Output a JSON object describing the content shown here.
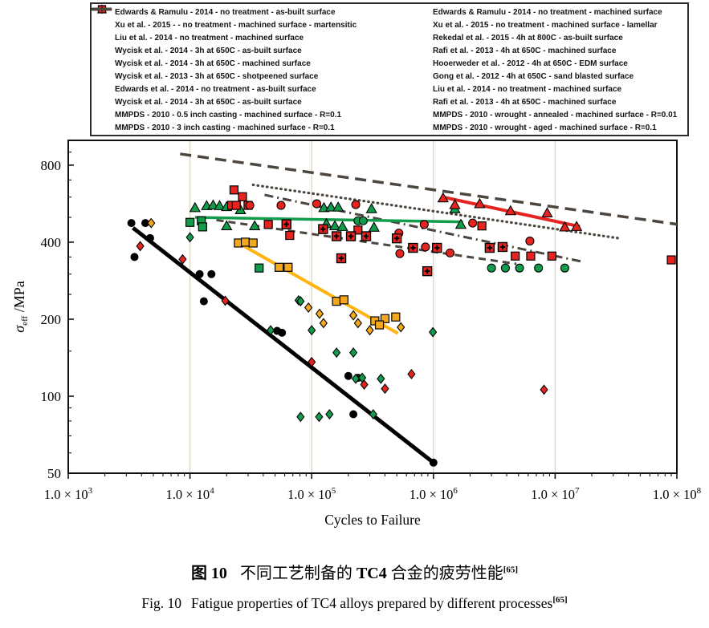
{
  "figure": {
    "caption_cn": {
      "label": "图 10",
      "pre": "不同工艺制备的 ",
      "alloy": "TC4",
      "post": " 合金的疲劳性能",
      "ref": "[65]"
    },
    "caption_en": {
      "label": "Fig. 10",
      "text": "Fatigue properties of TC4 alloys prepared by different processes",
      "ref": "[65]"
    }
  },
  "colors": {
    "green": "#119c4c",
    "red": "#e52420",
    "orange": "#f5a81c",
    "orange_line": "#ffb411",
    "black": "#000000",
    "gray": "#4d463f",
    "grid": "#ddd3c3",
    "frame": "#111111"
  },
  "chart_data": {
    "type": "scatter",
    "title": "",
    "xlabel": "Cycles to Failure",
    "ylabel": "σ_eff /MPa",
    "ylabel_parts": {
      "sigma": "σ",
      "sub": "eff",
      "unit": " /MPa"
    },
    "xlim": [
      1000,
      100000000
    ],
    "ylim": [
      50,
      1000
    ],
    "x_scale": "log",
    "y_scale": "log",
    "grid": "vertical-only",
    "legend_position": "top",
    "x_ticks": [
      {
        "value": 1000,
        "prefix": "1.0 × 10",
        "exp": "3"
      },
      {
        "value": 10000,
        "prefix": "1.0 × 10",
        "exp": "4"
      },
      {
        "value": 100000,
        "prefix": "1.0 × 10",
        "exp": "5"
      },
      {
        "value": 1000000,
        "prefix": "1.0 × 10",
        "exp": "6"
      },
      {
        "value": 10000000,
        "prefix": "1.0 × 10",
        "exp": "7"
      },
      {
        "value": 100000000,
        "prefix": "1.0 × 10",
        "exp": "8"
      }
    ],
    "y_ticks": [
      800,
      400,
      200,
      100,
      50
    ],
    "y_minor_ticks": [
      900,
      700,
      600,
      500,
      350,
      300,
      250,
      150,
      90,
      80,
      70,
      60
    ],
    "x_gridlines": [
      10000,
      100000,
      1000000,
      10000000
    ],
    "legend_left": [
      {
        "marker": "circle",
        "color": "#000000",
        "label": "Edwards & Ramulu - 2014 - no treatment - as-built surface"
      },
      {
        "marker": "square",
        "color": "#119c4c",
        "label": "Xu et al. - 2015 - - no treatment - machined surface - martensitic"
      },
      {
        "marker": "triangle",
        "color": "#119c4c",
        "label": "Liu et al. - 2014 - no treatment - machined surface"
      },
      {
        "marker": "square",
        "color": "#f5a81c",
        "label": "Wycisk et al. - 2014 - 3h at 650C - as-built surface"
      },
      {
        "marker": "square",
        "color": "#e52420",
        "label": "Wycisk et al. - 2014 - 3h at 650C - machined surface"
      },
      {
        "marker": "circle",
        "color": "#e52420",
        "label": "Wycisk et al. - 2013 - 3h at 650C - shotpeened surface"
      },
      {
        "marker": "line",
        "style": "solid",
        "color": "#000000",
        "label": "Edwards et al. - 2014 - no treatment - as-built surface"
      },
      {
        "marker": "line",
        "style": "solid",
        "color": "#ffb411",
        "label": "Wycisk  et al. -  2014 - 3h at 650C - as-built surface"
      },
      {
        "marker": "line",
        "style": "dashdot",
        "color": "#4d463f",
        "label": "MMPDS - 2010 - 0.5 inch casting - machined surface - R=0.1"
      },
      {
        "marker": "line",
        "style": "dashed-long",
        "color": "#4d463f",
        "label": "MMPDS - 2010 - 3 inch casting - machined surface - R=0.1"
      }
    ],
    "legend_right": [
      {
        "marker": "diamond",
        "color": "#119c4c",
        "label": "Edwards & Ramulu - 2014 - no treatment - machined surface"
      },
      {
        "marker": "circle",
        "color": "#119c4c",
        "label": "Xu et al. - 2015 - no treatment - machined surface - lamellar"
      },
      {
        "marker": "diamond",
        "color": "#f5a81c",
        "label": "Rekedal et al.  - 2015 - 4h at 800C - as-built surface"
      },
      {
        "marker": "triangle",
        "color": "#e52420",
        "label": "Rafi et al. - 2013 - 4h at 650C - machined surface"
      },
      {
        "marker": "diamond",
        "color": "#e52420",
        "label": "Hooerweder et al. - 2012 - 4h at 650C - EDM surface"
      },
      {
        "marker": "square-cross",
        "color": "#e52420",
        "label": "Gong et al. - 2012 - 4h at 650C - sand blasted surface"
      },
      {
        "marker": "line",
        "style": "solid",
        "color": "#119c4c",
        "label": "Liu et al. - 2014 - no treatment - machined surface"
      },
      {
        "marker": "line",
        "style": "solid",
        "color": "#e52420",
        "label": "Rafi et al. - 2013 - 4h at 650C - machined surface"
      },
      {
        "marker": "line",
        "style": "dotted",
        "color": "#4d463f",
        "label": "MMPDS - 2010 - wrought - annealed - machined surface - R=0.01"
      },
      {
        "marker": "line",
        "style": "dashed-long",
        "color": "#4d463f",
        "label": "MMPDS - 2010 - wrought - aged - machined surface - R=0.1"
      }
    ],
    "series": [
      {
        "name": "Edwards & Ramulu - 2014 - no treatment - as-built surface",
        "marker": "circle",
        "color": "#000000",
        "outline": false,
        "points": [
          [
            3300,
            475
          ],
          [
            4300,
            475
          ],
          [
            4700,
            415
          ],
          [
            3500,
            350
          ],
          [
            12000,
            300
          ],
          [
            15000,
            300
          ],
          [
            13000,
            235
          ],
          [
            52000,
            180
          ],
          [
            57000,
            177
          ],
          [
            200000,
            120
          ],
          [
            240000,
            118
          ],
          [
            220000,
            85
          ],
          [
            1000000,
            55
          ]
        ]
      },
      {
        "name": "Xu et al. - 2015 - no treatment - machined surface - martensitic",
        "marker": "square",
        "color": "#119c4c",
        "outline": true,
        "points": [
          [
            10000,
            478
          ],
          [
            12400,
            485
          ],
          [
            12700,
            459
          ],
          [
            37000,
            317
          ]
        ]
      },
      {
        "name": "Liu et al. - 2014 - no treatment - machined surface",
        "marker": "triangle",
        "color": "#119c4c",
        "outline": true,
        "points": [
          [
            11000,
            545
          ],
          [
            13700,
            555
          ],
          [
            15500,
            558
          ],
          [
            17500,
            555
          ],
          [
            20000,
            550
          ],
          [
            26000,
            535
          ],
          [
            20000,
            463
          ],
          [
            34000,
            463
          ],
          [
            126000,
            545
          ],
          [
            144000,
            548
          ],
          [
            165000,
            548
          ],
          [
            310000,
            540
          ],
          [
            132000,
            472
          ],
          [
            155000,
            463
          ],
          [
            179000,
            460
          ],
          [
            325000,
            457
          ],
          [
            1500000,
            540
          ],
          [
            1680000,
            469
          ]
        ]
      },
      {
        "name": "Wycisk et al. - 2014 - 3h at 650C - as-built surface",
        "marker": "square",
        "color": "#f5a81c",
        "outline": true,
        "points": [
          [
            25000,
            397
          ],
          [
            28500,
            400
          ],
          [
            33000,
            397
          ],
          [
            54000,
            319
          ],
          [
            64000,
            319
          ],
          [
            160000,
            235
          ],
          [
            184000,
            238
          ],
          [
            330000,
            197
          ],
          [
            400000,
            201
          ],
          [
            490000,
            204
          ],
          [
            360000,
            190
          ]
        ]
      },
      {
        "name": "Wycisk et al. - 2014 - 3h at 650C - machined surface",
        "marker": "square",
        "color": "#e52420",
        "outline": true,
        "points": [
          [
            23000,
            640
          ],
          [
            27000,
            602
          ],
          [
            22000,
            557
          ],
          [
            24000,
            557
          ],
          [
            30000,
            557
          ],
          [
            44000,
            469
          ],
          [
            66000,
            425
          ],
          [
            240000,
            446
          ],
          [
            2500000,
            463
          ],
          [
            4700000,
            353
          ],
          [
            6300000,
            353
          ],
          [
            9400000,
            353
          ],
          [
            90000000,
            341
          ]
        ]
      },
      {
        "name": "Wycisk et al. - 2013 - 3h at 650C - shotpeened surface",
        "marker": "circle",
        "color": "#e52420",
        "outline": true,
        "points": [
          [
            31000,
            557
          ],
          [
            56000,
            557
          ],
          [
            110000,
            565
          ],
          [
            230000,
            561
          ],
          [
            840000,
            469
          ],
          [
            2100000,
            475
          ],
          [
            520000,
            434
          ],
          [
            860000,
            383
          ],
          [
            530000,
            361
          ],
          [
            1370000,
            363
          ],
          [
            6200000,
            404
          ]
        ]
      },
      {
        "name": "Edwards & Ramulu - 2014 - no treatment - machined surface",
        "marker": "diamond",
        "color": "#119c4c",
        "outline": true,
        "points": [
          [
            10000,
            418
          ],
          [
            78000,
            237
          ],
          [
            81000,
            235
          ],
          [
            46000,
            181
          ],
          [
            100000,
            181
          ],
          [
            160000,
            148
          ],
          [
            220000,
            148
          ],
          [
            990000,
            178
          ],
          [
            230000,
            117
          ],
          [
            370000,
            117
          ],
          [
            260000,
            118
          ],
          [
            81000,
            83
          ],
          [
            115000,
            83
          ],
          [
            140000,
            85
          ],
          [
            320000,
            85
          ]
        ]
      },
      {
        "name": "Xu et al. - 2015 - no treatment - machined surface - lamellar",
        "marker": "circle",
        "color": "#119c4c",
        "outline": true,
        "points": [
          [
            240000,
            485
          ],
          [
            265000,
            485
          ],
          [
            3000000,
            317
          ],
          [
            3900000,
            317
          ],
          [
            5100000,
            317
          ],
          [
            7300000,
            317
          ],
          [
            12000000,
            317
          ]
        ]
      },
      {
        "name": "Rekedal et al. - 2015 - 4h at 800C - as-built surface",
        "marker": "diamond",
        "color": "#f5a81c",
        "outline": true,
        "points": [
          [
            4800,
            475
          ],
          [
            94000,
            222
          ],
          [
            116000,
            210
          ],
          [
            125000,
            193
          ],
          [
            220000,
            207
          ],
          [
            240000,
            193
          ],
          [
            300000,
            181
          ],
          [
            540000,
            186
          ]
        ]
      },
      {
        "name": "Rafi et al. - 2013 - 4h at 650C - machined surface",
        "marker": "triangle",
        "color": "#e52420",
        "outline": true,
        "points": [
          [
            1200000,
            595
          ],
          [
            1500000,
            560
          ],
          [
            2400000,
            565
          ],
          [
            4300000,
            530
          ],
          [
            8600000,
            520
          ],
          [
            12000000,
            458
          ],
          [
            15000000,
            460
          ]
        ]
      },
      {
        "name": "Hooerweder et al. - 2012 - 4h at 650C - EDM surface",
        "marker": "diamond",
        "color": "#e52420",
        "outline": true,
        "points": [
          [
            3900,
            386
          ],
          [
            8700,
            343
          ],
          [
            19500,
            236
          ],
          [
            100000,
            136
          ],
          [
            270000,
            111
          ],
          [
            400000,
            107
          ],
          [
            660000,
            122
          ],
          [
            8100000,
            106
          ]
        ]
      },
      {
        "name": "Gong et al. - 2012 - 4h at 650C - sand blasted surface",
        "marker": "square-cross",
        "color": "#e52420",
        "outline": true,
        "points": [
          [
            62000,
            470
          ],
          [
            124000,
            450
          ],
          [
            160000,
            422
          ],
          [
            210000,
            422
          ],
          [
            280000,
            422
          ],
          [
            500000,
            414
          ],
          [
            680000,
            380
          ],
          [
            1070000,
            380
          ],
          [
            2900000,
            380
          ],
          [
            175000,
            346
          ],
          [
            890000,
            308
          ],
          [
            3700000,
            383
          ]
        ]
      }
    ],
    "lines": [
      {
        "name": "MMPDS - 2010 - wrought - aged - machined surface - R=0.1",
        "style": "dashed-long",
        "color": "#4d463f",
        "width": 3.5,
        "from": [
          8300,
          885
        ],
        "to": [
          100000000,
          470
        ]
      },
      {
        "name": "MMPDS - 2010 - wrought - annealed - machined surface - R=0.01",
        "style": "dotted",
        "color": "#4d463f",
        "width": 3.2,
        "from": [
          33000,
          670
        ],
        "to": [
          35000000,
          413
        ]
      },
      {
        "name": "MMPDS - 2010 - 0.5 inch casting - machined surface - R=0.1",
        "style": "dashdot",
        "color": "#4d463f",
        "width": 3,
        "from": [
          41000,
          612
        ],
        "to": [
          17000000,
          335
        ]
      },
      {
        "name": "MMPDS - 2010 - 3 inch casting - machined surface - R=0.1",
        "style": "dashed",
        "color": "#4d463f",
        "width": 3,
        "from": [
          16500,
          488
        ],
        "to": [
          4800000,
          329
        ]
      },
      {
        "name": "Edwards et al. - 2014 - no treatment - as-built surface",
        "style": "solid",
        "color": "#000000",
        "width": 5,
        "from": [
          3400,
          455
        ],
        "to": [
          1000000,
          55
        ]
      },
      {
        "name": "Wycisk et al. - 2014 - 3h at 650C - as-built surface",
        "style": "solid",
        "color": "#ffb411",
        "width": 4,
        "from": [
          26000,
          393
        ],
        "to": [
          510000,
          176
        ]
      },
      {
        "name": "Liu et al. - 2014 - no treatment - machined surface",
        "style": "solid",
        "color": "#119c4c",
        "width": 3.5,
        "from": [
          11000,
          500
        ],
        "to": [
          1750000,
          480
        ]
      },
      {
        "name": "Rafi et al. - 2013 - 4h at 650C - machined surface",
        "style": "solid",
        "color": "#e52420",
        "width": 4,
        "from": [
          1200000,
          600
        ],
        "to": [
          16000000,
          460
        ]
      }
    ]
  }
}
